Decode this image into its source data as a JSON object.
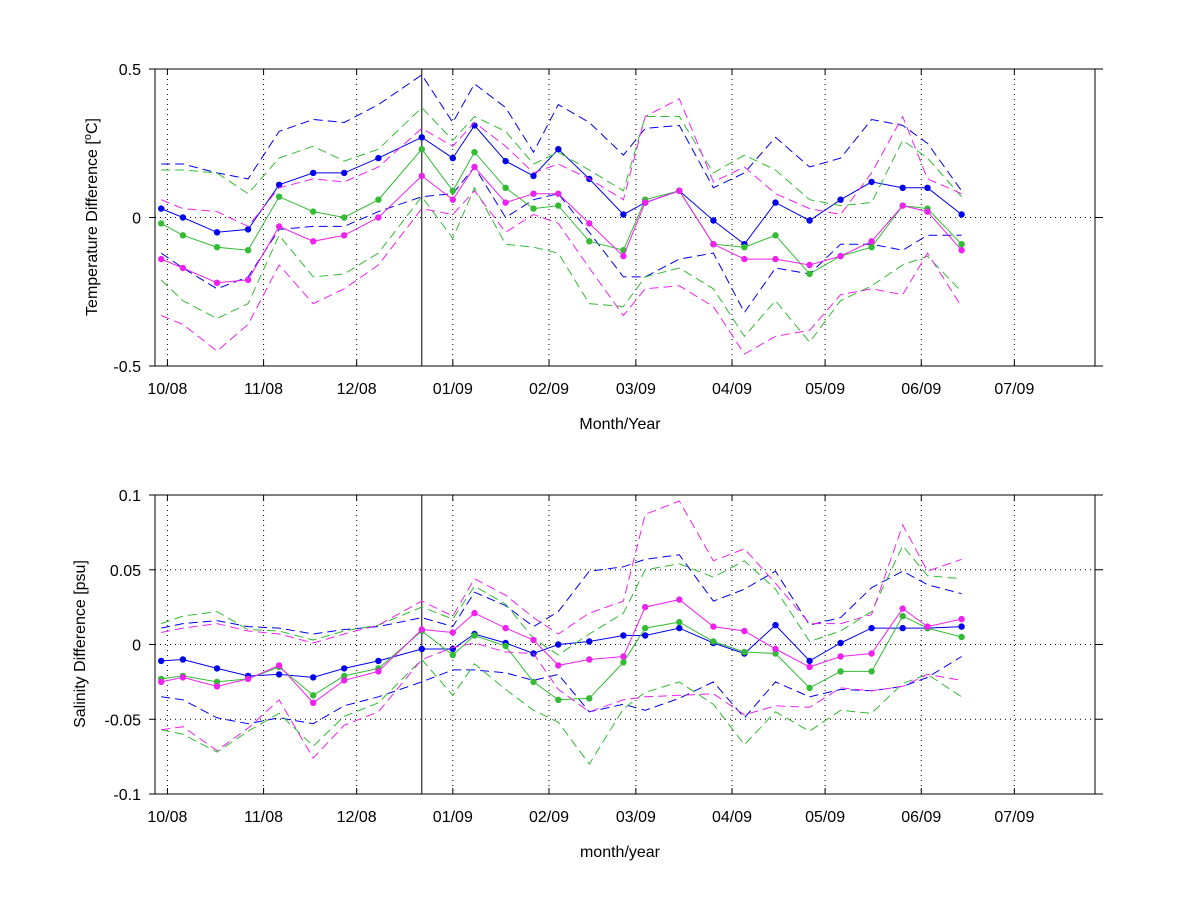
{
  "colors": {
    "blue": "#0000ee",
    "green": "#33bb33",
    "magenta": "#ee22ee",
    "axis": "#000000",
    "grid": "#000000"
  },
  "chart_data": [
    {
      "type": "line",
      "title": "",
      "xlabel": "Month/Year",
      "ylabel": "Temperature Difference [°C]",
      "ylabel_parts": {
        "before": "Temperature Difference [",
        "sup": "o",
        "after": "C]"
      },
      "xlim": [
        "2008-09-27",
        "2009-07-27"
      ],
      "ylim": [
        -0.5,
        0.5
      ],
      "x_ticks": [
        "2008-10-01",
        "2008-11-01",
        "2008-12-01",
        "2009-01-01",
        "2009-02-01",
        "2009-03-01",
        "2009-04-01",
        "2009-05-01",
        "2009-06-01",
        "2009-07-01"
      ],
      "x_tick_labels": [
        "10/08",
        "11/08",
        "12/08",
        "01/09",
        "02/09",
        "03/09",
        "04/09",
        "05/09",
        "06/09",
        "07/09"
      ],
      "y_ticks": [
        -0.5,
        0,
        0.5
      ],
      "y_tick_labels": [
        "-0.5",
        "0",
        "0.5"
      ],
      "grid": "dotted",
      "vertical_marker_date": "2008-12-22",
      "x": [
        "2008-09-29",
        "2008-10-06",
        "2008-10-17",
        "2008-10-27",
        "2008-11-06",
        "2008-11-17",
        "2008-11-27",
        "2008-12-08",
        "2008-12-22",
        "2009-01-01",
        "2009-01-08",
        "2009-01-18",
        "2009-01-27",
        "2009-02-04",
        "2009-02-14",
        "2009-02-25",
        "2009-03-04",
        "2009-03-15",
        "2009-03-26",
        "2009-04-05",
        "2009-04-15",
        "2009-04-26",
        "2009-05-06",
        "2009-05-16",
        "2009-05-26",
        "2009-06-03",
        "2009-06-14"
      ],
      "series": [
        {
          "color": "blue",
          "mean": [
            0.03,
            0.0,
            -0.05,
            -0.04,
            0.11,
            0.15,
            0.15,
            0.2,
            0.27,
            0.2,
            0.31,
            0.19,
            0.14,
            0.23,
            0.13,
            0.01,
            0.05,
            0.09,
            -0.01,
            -0.09,
            0.05,
            -0.01,
            0.06,
            0.12,
            0.1,
            0.1,
            0.01
          ],
          "upper": [
            0.18,
            0.18,
            0.15,
            0.13,
            0.29,
            0.33,
            0.32,
            0.38,
            0.48,
            0.32,
            0.45,
            0.37,
            0.22,
            0.38,
            0.32,
            0.21,
            0.3,
            0.31,
            0.1,
            0.15,
            0.27,
            0.17,
            0.2,
            0.33,
            0.31,
            0.25,
            0.09
          ],
          "lower": [
            -0.12,
            -0.17,
            -0.24,
            -0.2,
            -0.04,
            -0.03,
            -0.03,
            0.02,
            0.07,
            0.08,
            0.17,
            0.0,
            0.06,
            0.08,
            -0.05,
            -0.2,
            -0.2,
            -0.14,
            -0.12,
            -0.32,
            -0.17,
            -0.19,
            -0.09,
            -0.09,
            -0.11,
            -0.06,
            -0.06
          ]
        },
        {
          "color": "green",
          "mean": [
            -0.02,
            -0.06,
            -0.1,
            -0.11,
            0.07,
            0.02,
            0.0,
            0.06,
            0.23,
            0.09,
            0.22,
            0.1,
            0.03,
            0.04,
            -0.08,
            -0.11,
            0.06,
            0.09,
            -0.09,
            -0.1,
            -0.06,
            -0.19,
            -0.13,
            -0.1,
            0.04,
            0.03,
            -0.09
          ],
          "upper": [
            0.16,
            0.16,
            0.15,
            0.08,
            0.2,
            0.24,
            0.19,
            0.23,
            0.37,
            0.26,
            0.34,
            0.29,
            0.18,
            0.22,
            0.16,
            0.09,
            0.34,
            0.34,
            0.15,
            0.21,
            0.16,
            0.06,
            0.04,
            0.05,
            0.26,
            0.2,
            0.07
          ],
          "lower": [
            -0.21,
            -0.28,
            -0.34,
            -0.29,
            -0.06,
            -0.2,
            -0.19,
            -0.12,
            0.07,
            -0.07,
            0.1,
            -0.09,
            -0.1,
            -0.12,
            -0.29,
            -0.3,
            -0.2,
            -0.17,
            -0.24,
            -0.4,
            -0.28,
            -0.42,
            -0.28,
            -0.23,
            -0.16,
            -0.13,
            -0.25
          ]
        },
        {
          "color": "magenta",
          "mean": [
            -0.14,
            -0.17,
            -0.22,
            -0.21,
            -0.03,
            -0.08,
            -0.06,
            0.0,
            0.14,
            0.06,
            0.17,
            0.05,
            0.08,
            0.08,
            -0.02,
            -0.13,
            0.05,
            0.09,
            -0.09,
            -0.14,
            -0.14,
            -0.16,
            -0.13,
            -0.08,
            0.04,
            0.02,
            -0.11
          ],
          "upper": [
            0.06,
            0.03,
            0.02,
            -0.03,
            0.1,
            0.13,
            0.12,
            0.17,
            0.3,
            0.24,
            0.32,
            0.24,
            0.15,
            0.18,
            0.13,
            0.06,
            0.34,
            0.4,
            0.12,
            0.17,
            0.08,
            0.03,
            0.01,
            0.15,
            0.34,
            0.13,
            0.08
          ],
          "lower": [
            -0.33,
            -0.36,
            -0.45,
            -0.36,
            -0.16,
            -0.29,
            -0.24,
            -0.16,
            0.03,
            0.01,
            0.09,
            -0.05,
            0.01,
            -0.02,
            -0.17,
            -0.33,
            -0.24,
            -0.23,
            -0.3,
            -0.46,
            -0.4,
            -0.38,
            -0.26,
            -0.24,
            -0.26,
            -0.12,
            -0.3
          ]
        }
      ]
    },
    {
      "type": "line",
      "title": "",
      "xlabel": "month/year",
      "ylabel": "Salinity Difference [psu]",
      "xlim": [
        "2008-09-27",
        "2009-07-27"
      ],
      "ylim": [
        -0.1,
        0.1
      ],
      "x_ticks": [
        "2008-10-01",
        "2008-11-01",
        "2008-12-01",
        "2009-01-01",
        "2009-02-01",
        "2009-03-01",
        "2009-04-01",
        "2009-05-01",
        "2009-06-01",
        "2009-07-01"
      ],
      "x_tick_labels": [
        "10/08",
        "11/08",
        "12/08",
        "01/09",
        "02/09",
        "03/09",
        "04/09",
        "05/09",
        "06/09",
        "07/09"
      ],
      "y_ticks": [
        -0.1,
        -0.05,
        0,
        0.05,
        0.1
      ],
      "y_tick_labels": [
        "-0.1",
        "-0.05",
        "0",
        "0.05",
        "0.1"
      ],
      "grid": "dotted",
      "vertical_marker_date": "2008-12-22",
      "x": [
        "2008-09-29",
        "2008-10-06",
        "2008-10-17",
        "2008-10-27",
        "2008-11-06",
        "2008-11-17",
        "2008-11-27",
        "2008-12-08",
        "2008-12-22",
        "2009-01-01",
        "2009-01-08",
        "2009-01-18",
        "2009-01-27",
        "2009-02-04",
        "2009-02-14",
        "2009-02-25",
        "2009-03-04",
        "2009-03-15",
        "2009-03-26",
        "2009-04-05",
        "2009-04-15",
        "2009-04-26",
        "2009-05-06",
        "2009-05-16",
        "2009-05-26",
        "2009-06-03",
        "2009-06-14"
      ],
      "series": [
        {
          "color": "blue",
          "mean": [
            -0.011,
            -0.01,
            -0.016,
            -0.021,
            -0.02,
            -0.022,
            -0.016,
            -0.011,
            -0.003,
            -0.003,
            0.007,
            0.001,
            -0.006,
            0.0,
            0.002,
            0.006,
            0.006,
            0.011,
            0.001,
            -0.006,
            0.013,
            -0.011,
            0.001,
            0.011,
            0.011,
            0.011,
            0.012
          ],
          "upper": [
            0.011,
            0.014,
            0.016,
            0.012,
            0.011,
            0.007,
            0.01,
            0.012,
            0.018,
            0.012,
            0.035,
            0.026,
            0.012,
            0.022,
            0.049,
            0.052,
            0.057,
            0.06,
            0.029,
            0.037,
            0.049,
            0.013,
            0.018,
            0.038,
            0.049,
            0.04,
            0.034
          ],
          "lower": [
            -0.035,
            -0.037,
            -0.049,
            -0.053,
            -0.049,
            -0.053,
            -0.041,
            -0.035,
            -0.025,
            -0.017,
            -0.017,
            -0.019,
            -0.024,
            -0.02,
            -0.045,
            -0.04,
            -0.044,
            -0.036,
            -0.025,
            -0.049,
            -0.025,
            -0.035,
            -0.03,
            -0.031,
            -0.028,
            -0.022,
            -0.008
          ]
        },
        {
          "color": "green",
          "mean": [
            -0.023,
            -0.021,
            -0.025,
            -0.023,
            -0.015,
            -0.034,
            -0.021,
            -0.016,
            0.009,
            -0.007,
            0.006,
            -0.001,
            -0.025,
            -0.037,
            -0.036,
            -0.012,
            0.011,
            0.015,
            0.002,
            -0.005,
            -0.006,
            -0.029,
            -0.018,
            -0.018,
            0.019,
            0.011,
            0.005
          ],
          "upper": [
            0.014,
            0.019,
            0.022,
            0.01,
            0.009,
            0.003,
            0.009,
            0.013,
            0.025,
            0.017,
            0.039,
            0.027,
            0.004,
            -0.007,
            0.007,
            0.021,
            0.05,
            0.054,
            0.045,
            0.056,
            0.037,
            0.002,
            0.009,
            0.022,
            0.066,
            0.046,
            0.044
          ],
          "lower": [
            -0.057,
            -0.06,
            -0.072,
            -0.058,
            -0.046,
            -0.068,
            -0.048,
            -0.039,
            -0.01,
            -0.034,
            -0.013,
            -0.03,
            -0.044,
            -0.052,
            -0.08,
            -0.043,
            -0.032,
            -0.025,
            -0.04,
            -0.067,
            -0.045,
            -0.058,
            -0.044,
            -0.046,
            -0.026,
            -0.02,
            -0.035
          ]
        },
        {
          "color": "magenta",
          "mean": [
            -0.025,
            -0.022,
            -0.028,
            -0.023,
            -0.014,
            -0.039,
            -0.024,
            -0.018,
            0.01,
            0.008,
            0.021,
            0.011,
            0.003,
            -0.014,
            -0.01,
            -0.008,
            0.025,
            0.03,
            0.012,
            0.009,
            -0.003,
            -0.015,
            -0.008,
            -0.006,
            0.024,
            0.012,
            0.017
          ],
          "upper": [
            0.008,
            0.011,
            0.014,
            0.009,
            0.007,
            0.001,
            0.007,
            0.013,
            0.029,
            0.019,
            0.044,
            0.033,
            0.018,
            0.007,
            0.021,
            0.029,
            0.087,
            0.096,
            0.056,
            0.064,
            0.041,
            0.014,
            0.014,
            0.02,
            0.08,
            0.049,
            0.057
          ],
          "lower": [
            -0.057,
            -0.055,
            -0.071,
            -0.056,
            -0.037,
            -0.076,
            -0.054,
            -0.045,
            -0.01,
            -0.002,
            0.001,
            -0.005,
            -0.006,
            -0.03,
            -0.045,
            -0.037,
            -0.035,
            -0.034,
            -0.033,
            -0.047,
            -0.041,
            -0.042,
            -0.029,
            -0.031,
            -0.028,
            -0.02,
            -0.024
          ]
        }
      ]
    }
  ]
}
